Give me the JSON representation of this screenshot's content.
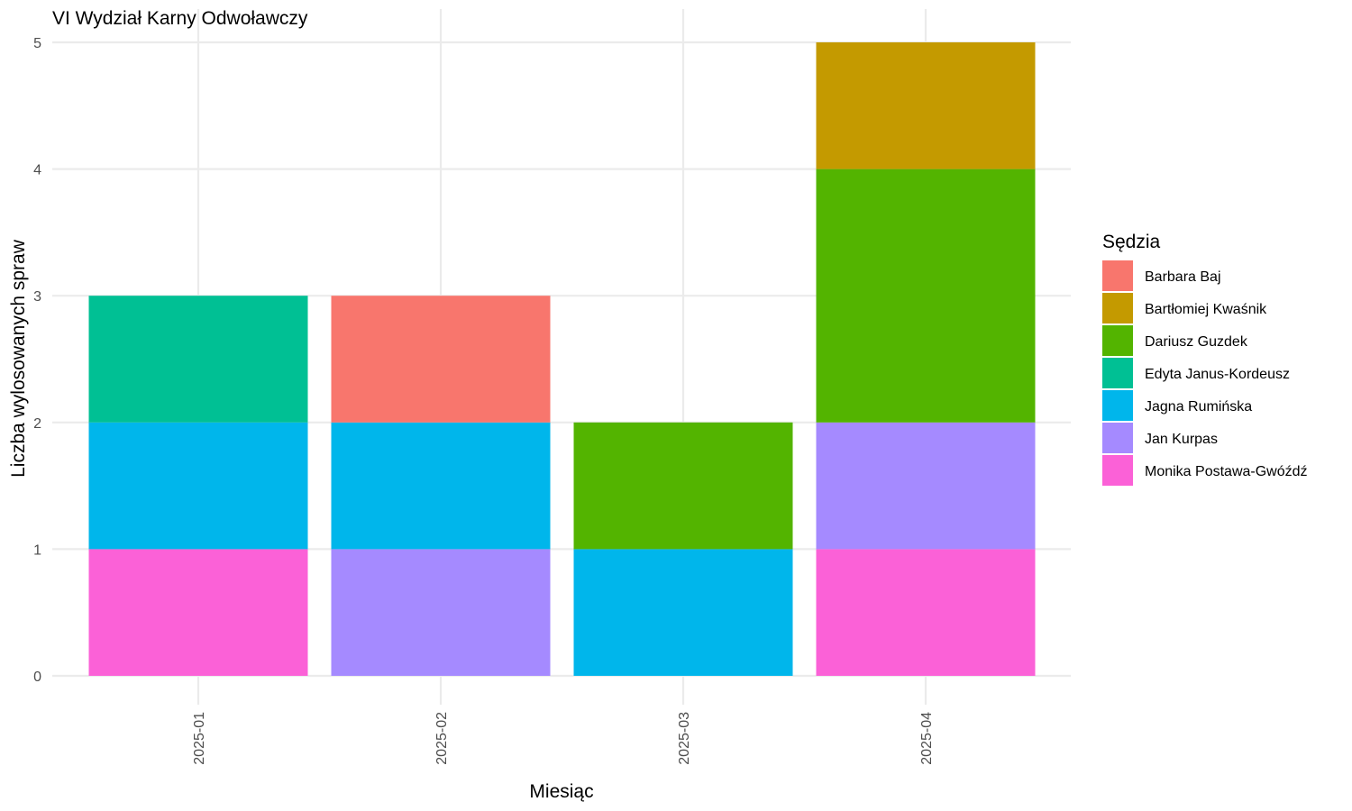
{
  "chart_data": {
    "type": "bar",
    "stacked": true,
    "title": "VI Wydział Karny Odwoławczy",
    "xlabel": "Miesiąc",
    "ylabel": "Liczba wylosowanych spraw",
    "categories": [
      "2025-01",
      "2025-02",
      "2025-03",
      "2025-04"
    ],
    "y_ticks": [
      "0",
      "1",
      "2",
      "3",
      "4",
      "5"
    ],
    "ylim": [
      0,
      5
    ],
    "grid": true,
    "legend": {
      "title": "Sędzia",
      "placement": "right"
    },
    "series": [
      {
        "name": "Barbara Baj",
        "color": "#F8766D",
        "values": [
          0,
          1,
          0,
          0
        ]
      },
      {
        "name": "Bartłomiej Kwaśnik",
        "color": "#C49A00",
        "values": [
          0,
          0,
          0,
          1
        ]
      },
      {
        "name": "Dariusz Guzdek",
        "color": "#53B400",
        "values": [
          0,
          0,
          1,
          2
        ]
      },
      {
        "name": "Edyta Janus-Kordeusz",
        "color": "#00C094",
        "values": [
          1,
          0,
          0,
          0
        ]
      },
      {
        "name": "Jagna Rumińska",
        "color": "#00B6EB",
        "values": [
          1,
          1,
          1,
          0
        ]
      },
      {
        "name": "Jan Kurpas",
        "color": "#A58AFF",
        "values": [
          0,
          1,
          0,
          1
        ]
      },
      {
        "name": "Monika Postawa-Gwóźdź",
        "color": "#FB61D7",
        "values": [
          1,
          0,
          0,
          1
        ]
      }
    ]
  }
}
